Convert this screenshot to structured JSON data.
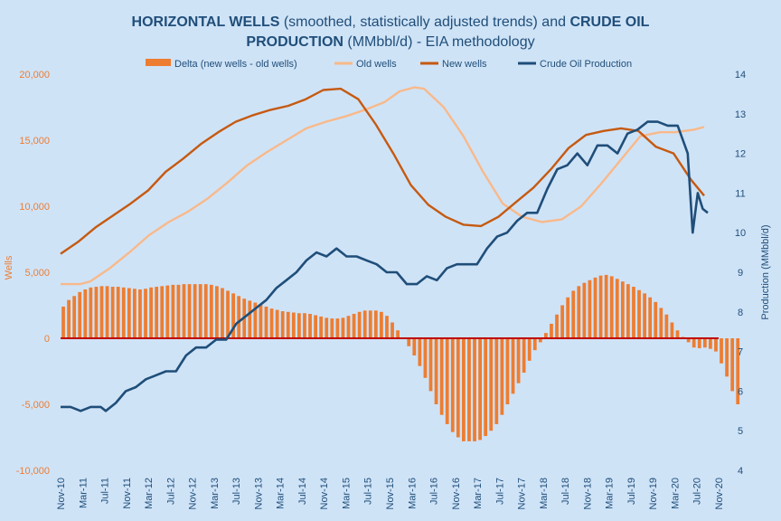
{
  "chart_data": {
    "type": "bar+line",
    "title": {
      "line1_bold_a": "HORIZONTAL WELLS",
      "line1_normal": " (smoothed, statistically adjusted trends) and ",
      "line1_bold_b": "CRUDE OIL",
      "line2_bold": "PRODUCTION",
      "line2_normal": " (MMbbl/d) - EIA methodology"
    },
    "ylabel_left": "Wells",
    "ylabel_right": "Production (MMbbl/d)",
    "ylim_left": [
      -10000,
      20000
    ],
    "ylim_right": [
      4,
      14
    ],
    "yticks_left": [
      "-10,000",
      "-5,000",
      "0",
      "5,000",
      "10,000",
      "15,000",
      "20,000"
    ],
    "yticks_left_values": [
      -10000,
      -5000,
      0,
      5000,
      10000,
      15000,
      20000
    ],
    "yticks_right": [
      "4",
      "5",
      "6",
      "7",
      "8",
      "9",
      "10",
      "11",
      "12",
      "13",
      "14"
    ],
    "yticks_right_values": [
      4,
      5,
      6,
      7,
      8,
      9,
      10,
      11,
      12,
      13,
      14
    ],
    "xticks": [
      "Nov-10",
      "Mar-11",
      "Jul-11",
      "Nov-11",
      "Mar-12",
      "Jul-12",
      "Nov-12",
      "Mar-13",
      "Jul-13",
      "Nov-13",
      "Mar-14",
      "Jul-14",
      "Nov-14",
      "Mar-15",
      "Jul-15",
      "Nov-15",
      "Mar-16",
      "Jul-16",
      "Nov-16",
      "Mar-17",
      "Jul-17",
      "Nov-17",
      "Mar-18",
      "Jul-18",
      "Nov-18",
      "Mar-19",
      "Jul-19",
      "Nov-19",
      "Mar-20",
      "Jul-20",
      "Nov-20"
    ],
    "x_range_months": [
      "2010-11",
      "2020-11"
    ],
    "legend_position": "top",
    "series": [
      {
        "name": "Delta (new wells - old wells)",
        "kind": "bar",
        "axis": "left",
        "color": "#ed7d31",
        "start": "2010-11",
        "values": [
          2400,
          2900,
          3200,
          3500,
          3700,
          3850,
          3900,
          3950,
          3950,
          3900,
          3900,
          3850,
          3800,
          3750,
          3700,
          3750,
          3850,
          3900,
          3950,
          4000,
          4050,
          4050,
          4100,
          4100,
          4100,
          4100,
          4100,
          4050,
          3950,
          3800,
          3600,
          3400,
          3200,
          3000,
          2850,
          2700,
          2550,
          2400,
          2250,
          2150,
          2050,
          2000,
          1950,
          1900,
          1900,
          1850,
          1750,
          1650,
          1550,
          1500,
          1500,
          1550,
          1700,
          1850,
          2000,
          2100,
          2100,
          2100,
          2000,
          1700,
          1200,
          600,
          0,
          -600,
          -1300,
          -2100,
          -3000,
          -4000,
          -5000,
          -5800,
          -6500,
          -7100,
          -7500,
          -7800,
          -7800,
          -7800,
          -7700,
          -7400,
          -7000,
          -6500,
          -5800,
          -5000,
          -4200,
          -3400,
          -2600,
          -1700,
          -900,
          -300,
          400,
          1100,
          1800,
          2500,
          3100,
          3600,
          3950,
          4200,
          4400,
          4600,
          4750,
          4800,
          4700,
          4500,
          4300,
          4100,
          3900,
          3650,
          3400,
          3100,
          2750,
          2300,
          1800,
          1200,
          600,
          100,
          -300,
          -700,
          -750,
          -700,
          -800,
          -1000,
          -1900,
          -2900,
          -4000,
          -5000
        ]
      },
      {
        "name": "Old wells",
        "kind": "line",
        "axis": "left",
        "color": "#f8b98a",
        "points": [
          [
            "2010-11",
            4100
          ],
          [
            "2011-03",
            4100
          ],
          [
            "2011-05",
            4300
          ],
          [
            "2011-09",
            5300
          ],
          [
            "2012-01",
            6500
          ],
          [
            "2012-05",
            7800
          ],
          [
            "2012-09",
            8800
          ],
          [
            "2013-01",
            9600
          ],
          [
            "2013-05",
            10600
          ],
          [
            "2013-09",
            11800
          ],
          [
            "2014-01",
            13100
          ],
          [
            "2014-05",
            14100
          ],
          [
            "2014-09",
            15000
          ],
          [
            "2015-01",
            15900
          ],
          [
            "2015-05",
            16400
          ],
          [
            "2015-09",
            16800
          ],
          [
            "2016-01",
            17300
          ],
          [
            "2016-05",
            17900
          ],
          [
            "2016-08",
            18700
          ],
          [
            "2016-11",
            19000
          ],
          [
            "2017-01",
            18900
          ],
          [
            "2017-05",
            17500
          ],
          [
            "2017-09",
            15300
          ],
          [
            "2018-01",
            12600
          ],
          [
            "2018-05",
            10200
          ],
          [
            "2018-09",
            9200
          ],
          [
            "2019-01",
            8800
          ],
          [
            "2019-05",
            9000
          ],
          [
            "2019-09",
            10000
          ],
          [
            "2020-01",
            11700
          ],
          [
            "2020-05",
            13500
          ],
          [
            "2020-09",
            15300
          ],
          [
            "2021-01",
            15600
          ],
          [
            "2021-04",
            15600
          ],
          [
            "2021-08",
            15800
          ],
          [
            "2021-10",
            16000
          ]
        ]
      },
      {
        "name": "New wells",
        "kind": "line",
        "axis": "left",
        "color": "#c55a11",
        "points": [
          [
            "2010-11",
            6400
          ],
          [
            "2011-03",
            7300
          ],
          [
            "2011-07",
            8400
          ],
          [
            "2011-11",
            9300
          ],
          [
            "2012-03",
            10200
          ],
          [
            "2012-07",
            11200
          ],
          [
            "2012-11",
            12600
          ],
          [
            "2013-03",
            13600
          ],
          [
            "2013-07",
            14700
          ],
          [
            "2013-11",
            15600
          ],
          [
            "2014-03",
            16400
          ],
          [
            "2014-07",
            16900
          ],
          [
            "2014-11",
            17300
          ],
          [
            "2015-03",
            17600
          ],
          [
            "2015-07",
            18100
          ],
          [
            "2015-11",
            18800
          ],
          [
            "2016-03",
            18900
          ],
          [
            "2016-07",
            18100
          ],
          [
            "2016-11",
            16200
          ],
          [
            "2017-03",
            14000
          ],
          [
            "2017-07",
            11600
          ],
          [
            "2017-11",
            10100
          ],
          [
            "2018-03",
            9200
          ],
          [
            "2018-07",
            8600
          ],
          [
            "2018-11",
            8500
          ],
          [
            "2019-03",
            9200
          ],
          [
            "2019-07",
            10300
          ],
          [
            "2019-11",
            11400
          ],
          [
            "2020-03",
            12800
          ],
          [
            "2020-07",
            14400
          ],
          [
            "2020-11",
            15400
          ],
          [
            "2021-03",
            15700
          ],
          [
            "2021-07",
            15900
          ],
          [
            "2021-11",
            15700
          ],
          [
            "2022-03",
            14500
          ],
          [
            "2022-07",
            14000
          ],
          [
            "2022-11",
            12000
          ],
          [
            "2023-02",
            10800
          ]
        ]
      },
      {
        "name": "Crude Oil Production",
        "kind": "line",
        "axis": "right",
        "color": "#1f4e79",
        "points": [
          [
            "2010-11",
            5.6
          ],
          [
            "2011-01",
            5.6
          ],
          [
            "2011-03",
            5.5
          ],
          [
            "2011-05",
            5.6
          ],
          [
            "2011-07",
            5.6
          ],
          [
            "2011-08",
            5.5
          ],
          [
            "2011-10",
            5.7
          ],
          [
            "2011-12",
            6.0
          ],
          [
            "2012-02",
            6.1
          ],
          [
            "2012-04",
            6.3
          ],
          [
            "2012-06",
            6.4
          ],
          [
            "2012-08",
            6.5
          ],
          [
            "2012-10",
            6.5
          ],
          [
            "2012-12",
            6.9
          ],
          [
            "2013-02",
            7.1
          ],
          [
            "2013-04",
            7.1
          ],
          [
            "2013-06",
            7.3
          ],
          [
            "2013-08",
            7.3
          ],
          [
            "2013-10",
            7.7
          ],
          [
            "2013-12",
            7.9
          ],
          [
            "2014-02",
            8.1
          ],
          [
            "2014-04",
            8.3
          ],
          [
            "2014-06",
            8.6
          ],
          [
            "2014-08",
            8.8
          ],
          [
            "2014-10",
            9.0
          ],
          [
            "2014-12",
            9.3
          ],
          [
            "2015-02",
            9.5
          ],
          [
            "2015-04",
            9.4
          ],
          [
            "2015-06",
            9.6
          ],
          [
            "2015-08",
            9.4
          ],
          [
            "2015-10",
            9.4
          ],
          [
            "2015-12",
            9.3
          ],
          [
            "2016-02",
            9.2
          ],
          [
            "2016-04",
            9.0
          ],
          [
            "2016-06",
            9.0
          ],
          [
            "2016-08",
            8.7
          ],
          [
            "2016-10",
            8.7
          ],
          [
            "2016-12",
            8.9
          ],
          [
            "2017-02",
            8.8
          ],
          [
            "2017-04",
            9.1
          ],
          [
            "2017-06",
            9.2
          ],
          [
            "2017-08",
            9.2
          ],
          [
            "2017-10",
            9.2
          ],
          [
            "2017-12",
            9.6
          ],
          [
            "2018-02",
            9.9
          ],
          [
            "2018-04",
            10.0
          ],
          [
            "2018-06",
            10.3
          ],
          [
            "2018-08",
            10.5
          ],
          [
            "2018-10",
            10.5
          ],
          [
            "2018-12",
            11.1
          ],
          [
            "2019-02",
            11.6
          ],
          [
            "2019-04",
            11.7
          ],
          [
            "2019-06",
            12.0
          ],
          [
            "2019-08",
            11.7
          ],
          [
            "2019-10",
            12.2
          ],
          [
            "2019-12",
            12.2
          ],
          [
            "2020-02",
            12.0
          ],
          [
            "2020-04",
            12.5
          ],
          [
            "2020-06",
            12.6
          ],
          [
            "2020-08",
            12.8
          ],
          [
            "2020-10",
            12.8
          ],
          [
            "2020-12",
            12.7
          ],
          [
            "2021-02",
            12.7
          ],
          [
            "2021-04",
            12.0
          ],
          [
            "2021-05",
            10.0
          ],
          [
            "2021-06",
            11.0
          ],
          [
            "2021-07",
            10.6
          ],
          [
            "2021-08",
            10.5
          ]
        ]
      }
    ]
  }
}
